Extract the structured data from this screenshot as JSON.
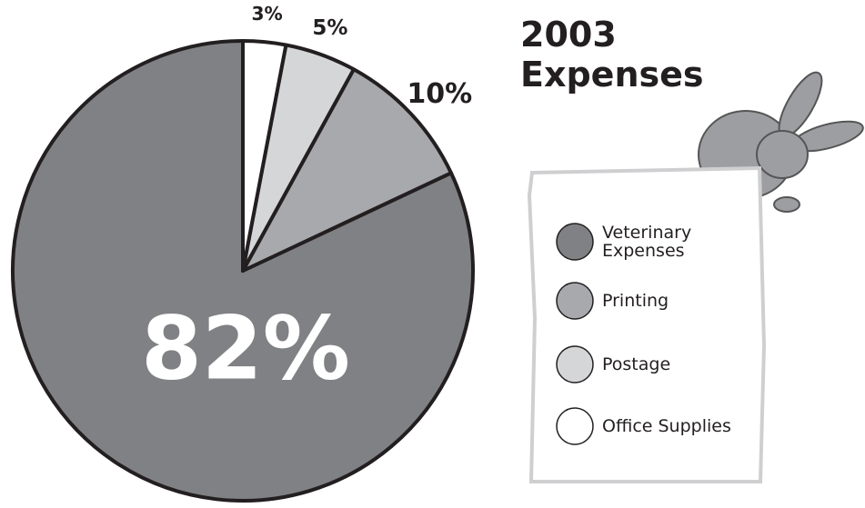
{
  "chart_data": {
    "type": "pie",
    "title": "2003 Expenses",
    "categories": [
      "Veterinary Expenses",
      "Printing",
      "Postage",
      "Office Supplies"
    ],
    "values": [
      82,
      10,
      5,
      3
    ],
    "value_labels": [
      "82%",
      "10%",
      "5%",
      "3%"
    ],
    "colors": [
      "#808184",
      "#a8a9ac",
      "#d5d6d8",
      "#ffffff"
    ]
  }
}
